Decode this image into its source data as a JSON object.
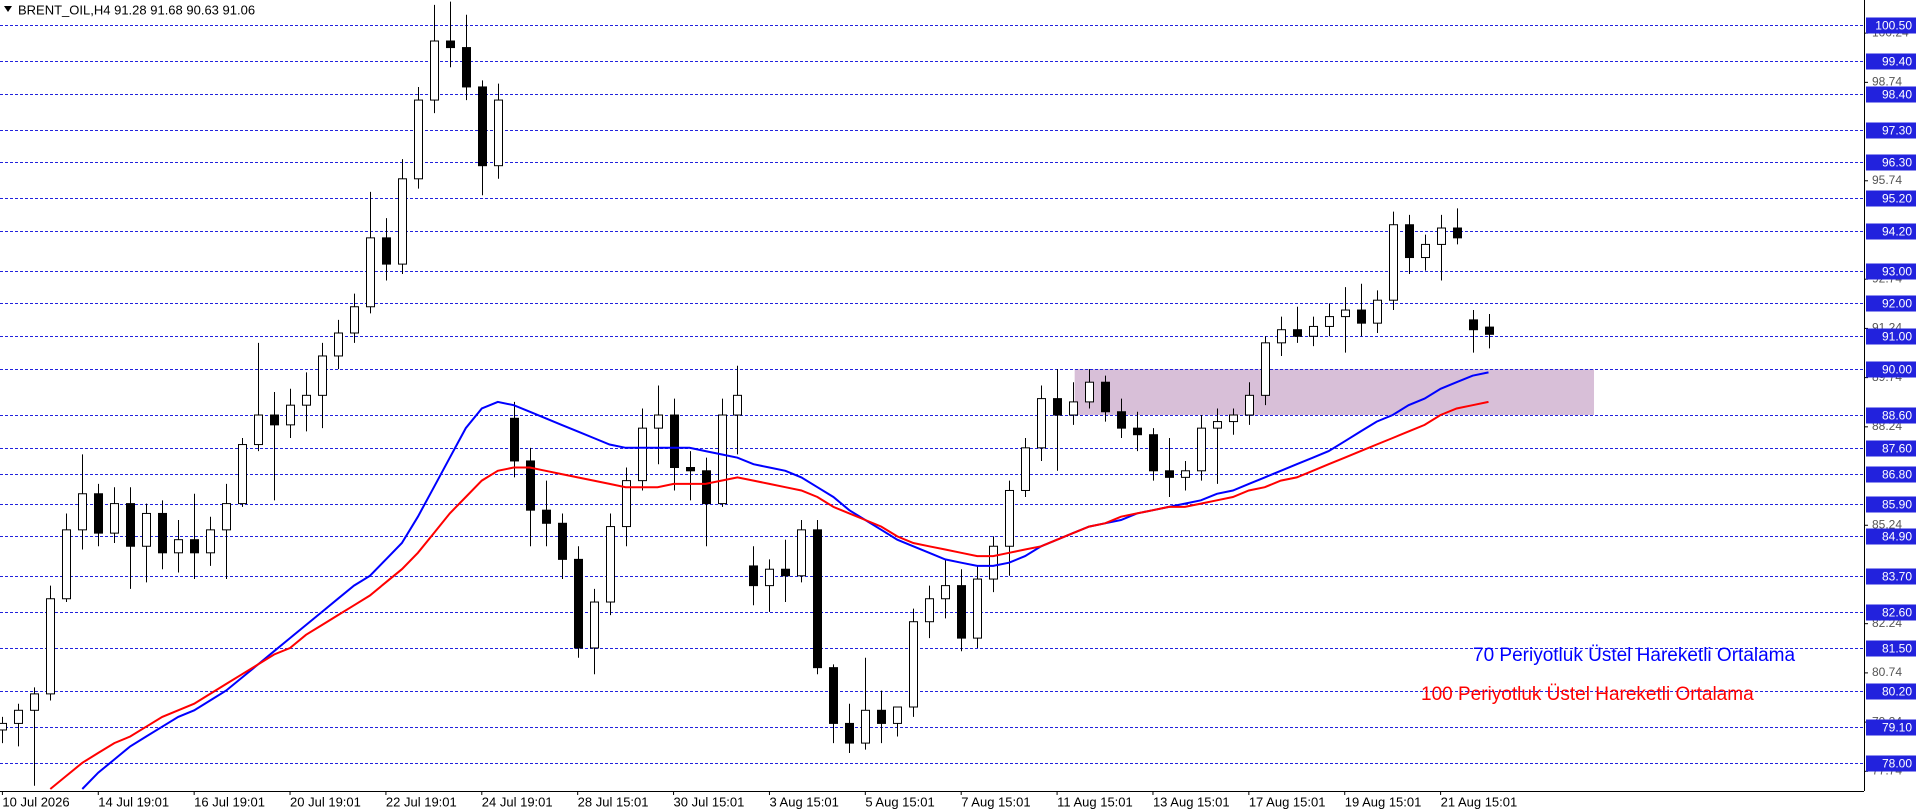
{
  "chart_data": {
    "type": "candlestick",
    "title": "BRENT_OIL,H4  91.28 91.68 90.63 91.06",
    "categories": [
      "10 Jul 2026",
      null,
      null,
      null,
      null,
      null,
      "14 Jul 19:01",
      null,
      null,
      null,
      null,
      null,
      "16 Jul 19:01",
      null,
      null,
      null,
      null,
      null,
      "20 Jul 19:01",
      null,
      null,
      null,
      null,
      null,
      "22 Jul 19:01",
      null,
      null,
      null,
      null,
      null,
      "24 Jul 19:01",
      null,
      null,
      null,
      null,
      null,
      "28 Jul 15:01",
      null,
      null,
      null,
      null,
      null,
      "30 Jul 15:01",
      null,
      null,
      null,
      null,
      null,
      "3 Aug 15:01",
      null,
      null,
      null,
      null,
      null,
      "5 Aug 15:01",
      null,
      null,
      null,
      null,
      null,
      "7 Aug 15:01",
      null,
      null,
      null,
      null,
      null,
      "11 Aug 15:01",
      null,
      null,
      null,
      null,
      null,
      "13 Aug 15:01",
      null,
      null,
      null,
      null,
      null,
      "17 Aug 15:01",
      null,
      null,
      null,
      null,
      null,
      "19 Aug 15:01",
      null,
      null,
      null,
      null,
      null,
      "21 Aug 15:01",
      null,
      null,
      null
    ],
    "open": [
      79.0,
      79.2,
      79.6,
      80.1,
      83.0,
      85.1,
      86.2,
      85.0,
      85.9,
      84.6,
      85.6,
      84.4,
      84.8,
      84.4,
      85.1,
      85.9,
      87.7,
      88.6,
      88.3,
      88.9,
      89.2,
      90.4,
      91.1,
      91.9,
      94.0,
      93.2,
      95.8,
      98.2,
      100.0,
      99.8,
      98.6,
      96.2,
      88.5,
      87.2,
      85.7,
      85.3,
      84.2,
      81.5,
      82.9,
      85.2,
      86.6,
      88.2,
      88.6,
      87.0,
      86.9,
      85.9,
      88.6,
      84.0,
      83.4,
      83.9,
      83.7,
      85.1,
      80.9,
      79.2,
      78.6,
      79.6,
      79.2,
      79.7,
      82.3,
      83.0,
      83.4,
      81.8,
      83.6,
      84.6,
      86.3,
      87.6,
      89.1,
      88.6,
      89.0,
      89.6,
      88.7,
      88.2,
      88.0,
      86.9,
      86.7,
      86.9,
      88.2,
      88.4,
      88.6,
      89.2,
      90.8,
      91.2,
      91.0,
      91.3,
      91.6,
      91.8,
      91.4,
      92.1,
      94.4,
      93.4,
      93.8,
      94.3,
      91.5,
      91.28
    ],
    "high": [
      79.4,
      79.8,
      80.3,
      83.4,
      85.6,
      87.4,
      86.5,
      86.4,
      86.4,
      85.9,
      86.0,
      85.4,
      86.2,
      85.5,
      86.5,
      87.9,
      90.8,
      89.3,
      89.4,
      89.9,
      90.8,
      91.5,
      92.3,
      95.4,
      94.6,
      96.4,
      98.6,
      101.1,
      101.2,
      100.8,
      98.8,
      98.7,
      89.0,
      87.6,
      86.6,
      85.6,
      84.6,
      83.3,
      85.6,
      87.0,
      88.8,
      89.5,
      89.1,
      87.5,
      87.3,
      89.1,
      90.1,
      84.6,
      84.2,
      84.8,
      85.4,
      85.4,
      81.0,
      79.8,
      81.2,
      80.2,
      79.7,
      82.7,
      83.4,
      84.2,
      83.9,
      84.0,
      84.9,
      86.6,
      87.9,
      89.5,
      90.0,
      89.6,
      90.0,
      89.8,
      89.1,
      88.7,
      88.2,
      87.9,
      87.2,
      88.6,
      88.8,
      88.8,
      89.6,
      91.0,
      91.6,
      91.9,
      91.6,
      92.0,
      92.5,
      92.6,
      92.4,
      94.8,
      94.7,
      94.1,
      94.7,
      94.9,
      91.8,
      91.68
    ],
    "low": [
      78.6,
      78.5,
      77.3,
      79.9,
      82.9,
      84.5,
      84.6,
      84.7,
      83.3,
      83.5,
      83.9,
      83.8,
      83.6,
      84.0,
      83.6,
      85.8,
      87.5,
      86.0,
      87.9,
      88.1,
      88.2,
      90.0,
      90.8,
      91.7,
      92.7,
      92.9,
      95.5,
      97.8,
      99.2,
      98.2,
      95.3,
      95.8,
      86.7,
      84.6,
      84.6,
      83.6,
      81.2,
      80.7,
      82.5,
      84.6,
      86.3,
      87.1,
      86.3,
      86.0,
      84.6,
      85.8,
      87.4,
      82.8,
      82.6,
      82.9,
      83.5,
      80.7,
      78.6,
      78.3,
      78.4,
      78.6,
      78.8,
      79.4,
      81.8,
      82.4,
      81.4,
      81.5,
      83.2,
      83.7,
      86.1,
      87.2,
      86.9,
      88.3,
      88.8,
      88.4,
      87.9,
      87.5,
      86.6,
      86.1,
      86.3,
      86.6,
      86.5,
      88.0,
      88.3,
      88.9,
      90.4,
      90.8,
      90.7,
      91.0,
      90.5,
      91.0,
      91.1,
      91.8,
      92.9,
      93.0,
      92.7,
      93.8,
      90.5,
      90.63
    ],
    "close": [
      79.2,
      79.6,
      80.1,
      83.0,
      85.1,
      86.2,
      85.0,
      85.9,
      84.6,
      85.6,
      84.4,
      84.8,
      84.4,
      85.1,
      85.9,
      87.7,
      88.6,
      88.3,
      88.9,
      89.2,
      90.4,
      91.1,
      91.9,
      94.0,
      93.2,
      95.8,
      98.2,
      100.0,
      99.8,
      98.6,
      96.2,
      98.2,
      87.2,
      85.7,
      85.3,
      84.2,
      81.5,
      82.9,
      85.2,
      86.6,
      88.2,
      88.6,
      87.0,
      86.9,
      85.9,
      88.6,
      89.2,
      83.4,
      83.9,
      83.7,
      85.1,
      80.9,
      79.2,
      78.6,
      79.6,
      79.2,
      79.7,
      82.3,
      83.0,
      83.4,
      81.8,
      83.6,
      84.6,
      86.3,
      87.6,
      89.1,
      88.6,
      89.0,
      89.6,
      88.7,
      88.2,
      88.0,
      86.9,
      86.7,
      86.9,
      88.2,
      88.4,
      88.6,
      89.2,
      90.8,
      91.2,
      91.0,
      91.3,
      91.6,
      91.8,
      91.4,
      92.1,
      94.4,
      93.4,
      93.8,
      94.3,
      94.0,
      91.2,
      91.06
    ],
    "up_color": "#ffffff",
    "down_color": "#000000",
    "lines": [
      {
        "name": "70 Periyotluk Üstel Hareketli Ortalama",
        "color": "#0000ff",
        "values": [
          null,
          null,
          null,
          null,
          null,
          77.2,
          77.7,
          78.1,
          78.5,
          78.8,
          79.1,
          79.4,
          79.6,
          79.9,
          80.2,
          80.6,
          81.0,
          81.4,
          81.8,
          82.2,
          82.6,
          83.0,
          83.4,
          83.7,
          84.2,
          84.7,
          85.5,
          86.4,
          87.3,
          88.2,
          88.8,
          89.0,
          88.9,
          88.7,
          88.5,
          88.3,
          88.1,
          87.9,
          87.7,
          87.6,
          87.6,
          87.6,
          87.6,
          87.6,
          87.5,
          87.4,
          87.3,
          87.1,
          87.0,
          86.9,
          86.7,
          86.4,
          86.1,
          85.7,
          85.4,
          85.1,
          84.8,
          84.6,
          84.4,
          84.2,
          84.1,
          84.0,
          84.0,
          84.1,
          84.3,
          84.6,
          84.8,
          85.0,
          85.2,
          85.3,
          85.4,
          85.6,
          85.7,
          85.8,
          85.9,
          86.0,
          86.2,
          86.3,
          86.5,
          86.7,
          86.9,
          87.1,
          87.3,
          87.5,
          87.8,
          88.1,
          88.4,
          88.6,
          88.9,
          89.1,
          89.4,
          89.6,
          89.8,
          89.9
        ]
      },
      {
        "name": "100 Periyotluk Üstel Hareketli Ortalama",
        "color": "#ff0000",
        "values": [
          null,
          null,
          null,
          77.2,
          77.6,
          78.0,
          78.3,
          78.6,
          78.8,
          79.1,
          79.4,
          79.6,
          79.8,
          80.1,
          80.4,
          80.7,
          81.0,
          81.3,
          81.5,
          81.9,
          82.2,
          82.5,
          82.8,
          83.1,
          83.5,
          83.9,
          84.4,
          85.0,
          85.6,
          86.1,
          86.6,
          86.9,
          87.0,
          87.0,
          86.9,
          86.8,
          86.7,
          86.6,
          86.5,
          86.4,
          86.4,
          86.4,
          86.5,
          86.5,
          86.5,
          86.6,
          86.7,
          86.6,
          86.5,
          86.4,
          86.3,
          86.1,
          85.8,
          85.6,
          85.4,
          85.2,
          84.9,
          84.7,
          84.6,
          84.5,
          84.4,
          84.3,
          84.3,
          84.4,
          84.5,
          84.6,
          84.8,
          85.0,
          85.2,
          85.3,
          85.5,
          85.6,
          85.7,
          85.8,
          85.8,
          85.9,
          86.0,
          86.1,
          86.3,
          86.4,
          86.6,
          86.7,
          86.9,
          87.1,
          87.3,
          87.5,
          87.7,
          87.9,
          88.1,
          88.3,
          88.6,
          88.8,
          88.9,
          89.0
        ]
      }
    ],
    "zone": [
      88.6,
      90.0
    ],
    "zone_color": "#d8bfd8",
    "level_color": "#2222dd",
    "levels": [
      {
        "value": 100.5,
        "label": "100.50"
      },
      {
        "value": 99.4,
        "label": "99.40"
      },
      {
        "value": 98.4,
        "label": "98.40"
      },
      {
        "value": 97.3,
        "label": "97.30"
      },
      {
        "value": 96.3,
        "label": "96.30"
      },
      {
        "value": 95.2,
        "label": "95.20"
      },
      {
        "value": 94.2,
        "label": "94.20"
      },
      {
        "value": 93.0,
        "label": "93.00"
      },
      {
        "value": 92.0,
        "label": "92.00"
      },
      {
        "value": 91.0,
        "label": "91.00"
      },
      {
        "value": 90.0,
        "label": "90.00"
      },
      {
        "value": 88.6,
        "label": "88.60"
      },
      {
        "value": 87.6,
        "label": "87.60"
      },
      {
        "value": 86.8,
        "label": "86.80"
      },
      {
        "value": 85.9,
        "label": "85.90"
      },
      {
        "value": 84.9,
        "label": "84.90"
      },
      {
        "value": 83.7,
        "label": "83.70"
      },
      {
        "value": 82.6,
        "label": "82.60"
      },
      {
        "value": 81.5,
        "label": "81.50"
      },
      {
        "value": 80.2,
        "label": "80.20"
      },
      {
        "value": 79.1,
        "label": "79.10"
      },
      {
        "value": 78.0,
        "label": "78.00"
      }
    ],
    "ylim": [
      77.14,
      101.25
    ],
    "yticks": [
      100.24,
      98.74,
      95.74,
      92.74,
      91.24,
      89.74,
      88.24,
      85.24,
      82.24,
      80.74,
      79.24,
      77.74
    ]
  }
}
